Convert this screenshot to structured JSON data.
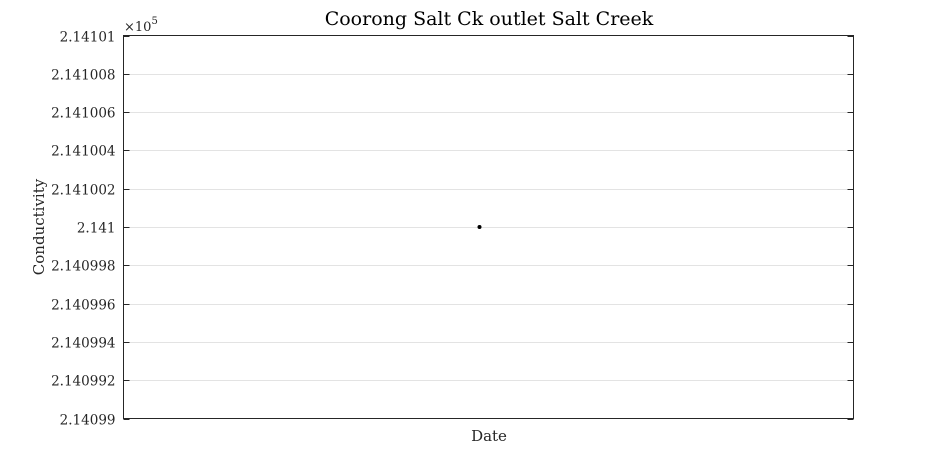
{
  "chart_data": {
    "type": "scatter",
    "title": "Coorong Salt Ck outlet Salt Creek",
    "xlabel": "Date",
    "ylabel": "Conductivity",
    "y_exponent_label": "×10",
    "y_exponent_power": "5",
    "ylim": [
      2.14099,
      2.14101
    ],
    "yticks": [
      "2.14099",
      "2.140992",
      "2.140994",
      "2.140996",
      "2.140998",
      "2.141",
      "2.141002",
      "2.141004",
      "2.141006",
      "2.141008",
      "2.14101"
    ],
    "grid": true,
    "series": [
      {
        "x": [
          0.5
        ],
        "y": [
          2.141
        ],
        "color": "#000000"
      }
    ]
  }
}
